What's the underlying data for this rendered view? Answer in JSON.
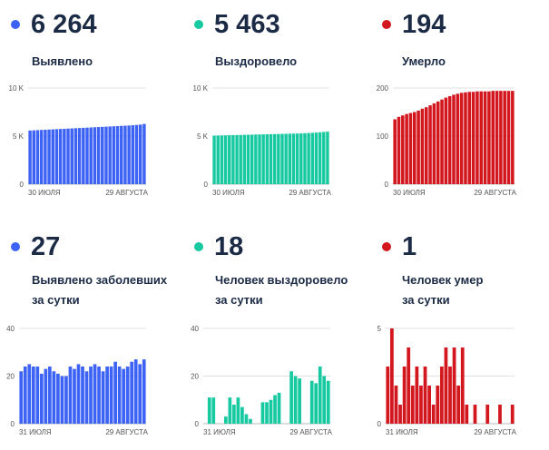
{
  "panels": [
    {
      "value": "6 264",
      "label_lines": [
        "Выявлено"
      ],
      "color": "#3d63f5",
      "chart_data": {
        "type": "bar",
        "x_start_label": "30 ИЮЛЯ",
        "x_end_label": "29 АВГУСТА",
        "y_ticks": [
          "10 K",
          "5 K",
          "0"
        ],
        "ylim": [
          0,
          10000
        ],
        "values": [
          5580,
          5600,
          5620,
          5640,
          5660,
          5680,
          5700,
          5720,
          5740,
          5760,
          5780,
          5800,
          5820,
          5840,
          5860,
          5880,
          5900,
          5920,
          5940,
          5960,
          5980,
          6000,
          6020,
          6040,
          6060,
          6080,
          6100,
          6130,
          6160,
          6190,
          6264
        ]
      }
    },
    {
      "value": "5 463",
      "label_lines": [
        "Выздоровело"
      ],
      "color": "#17c9a0",
      "chart_data": {
        "type": "bar",
        "x_start_label": "30 ИЮЛЯ",
        "x_end_label": "29 АВГУСТА",
        "y_ticks": [
          "10 K",
          "5 K",
          "0"
        ],
        "ylim": [
          0,
          10000
        ],
        "values": [
          5050,
          5060,
          5070,
          5080,
          5090,
          5100,
          5110,
          5120,
          5130,
          5140,
          5150,
          5160,
          5170,
          5180,
          5190,
          5200,
          5210,
          5220,
          5230,
          5240,
          5250,
          5260,
          5270,
          5280,
          5300,
          5320,
          5340,
          5370,
          5400,
          5430,
          5463
        ]
      }
    },
    {
      "value": "194",
      "label_lines": [
        "Умерло"
      ],
      "color": "#d2171e",
      "chart_data": {
        "type": "bar",
        "x_start_label": "30 ИЮЛЯ",
        "x_end_label": "29 АВГУСТА",
        "y_ticks": [
          "200",
          "100",
          "0"
        ],
        "ylim": [
          0,
          200
        ],
        "values": [
          135,
          140,
          143,
          146,
          148,
          150,
          153,
          157,
          160,
          164,
          168,
          172,
          176,
          180,
          183,
          186,
          188,
          190,
          191,
          192,
          192,
          193,
          193,
          193,
          193,
          194,
          194,
          194,
          194,
          194,
          194
        ]
      }
    },
    {
      "value": "27",
      "label_lines": [
        "Выявлено заболевших",
        "за сутки"
      ],
      "color": "#3d63f5",
      "chart_data": {
        "type": "bar",
        "x_start_label": "31 ИЮЛЯ",
        "x_end_label": "29 АВГУСТА",
        "y_ticks": [
          "40",
          "20",
          "0"
        ],
        "ylim": [
          0,
          40
        ],
        "values": [
          22,
          24,
          25,
          24,
          24,
          21,
          23,
          24,
          22,
          21,
          20,
          20,
          24,
          23,
          25,
          24,
          22,
          24,
          25,
          24,
          22,
          24,
          24,
          26,
          24,
          23,
          24,
          26,
          27,
          25,
          27
        ]
      }
    },
    {
      "value": "18",
      "label_lines": [
        "Человек выздоровело",
        "за сутки"
      ],
      "color": "#17c9a0",
      "chart_data": {
        "type": "bar",
        "x_start_label": "31 ИЮЛЯ",
        "x_end_label": "29 АВГУСТА",
        "y_ticks": [
          "40",
          "20",
          "0"
        ],
        "ylim": [
          0,
          40
        ],
        "values": [
          0,
          11,
          11,
          0,
          0,
          3,
          11,
          8,
          11,
          7,
          4,
          2,
          0,
          0,
          9,
          9,
          10,
          12,
          13,
          0,
          0,
          22,
          20,
          19,
          0,
          0,
          18,
          17,
          24,
          20,
          18
        ]
      }
    },
    {
      "value": "1",
      "label_lines": [
        "Человек умер",
        "за сутки"
      ],
      "color": "#d2171e",
      "chart_data": {
        "type": "bar",
        "x_start_label": "31 ИЮЛЯ",
        "x_end_label": "29 АВГУСТА",
        "y_ticks": [
          "5",
          "",
          "0"
        ],
        "ylim": [
          0,
          5
        ],
        "values": [
          3,
          5,
          2,
          1,
          3,
          4,
          2,
          3,
          2,
          3,
          2,
          1,
          2,
          3,
          4,
          3,
          4,
          2,
          4,
          1,
          0,
          1,
          0,
          0,
          1,
          0,
          0,
          1,
          0,
          0,
          1
        ]
      }
    }
  ]
}
